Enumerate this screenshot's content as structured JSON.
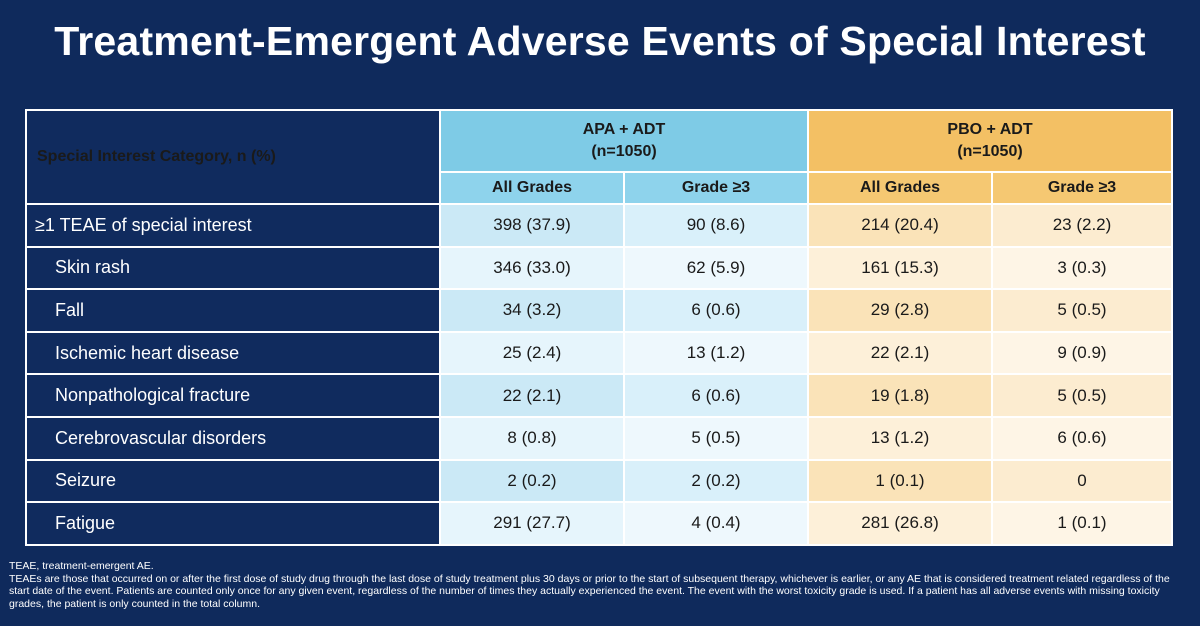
{
  "title": "Treatment-Emergent Adverse Events of Special Interest",
  "table": {
    "corner_label": "Special Interest Category, n (%)",
    "groups": [
      {
        "name": "APA + ADT",
        "n": "(n=1050)"
      },
      {
        "name": "PBO + ADT",
        "n": "(n=1050)"
      }
    ],
    "subheaders": [
      "All Grades",
      "Grade ≥3",
      "All Grades",
      "Grade ≥3"
    ],
    "rows": [
      {
        "label": "≥1 TEAE of special interest",
        "values": [
          "398 (37.9)",
          "90 (8.6)",
          "214 (20.4)",
          "23 (2.2)"
        ]
      },
      {
        "label": "Skin rash",
        "values": [
          "346 (33.0)",
          "62 (5.9)",
          "161 (15.3)",
          "3 (0.3)"
        ]
      },
      {
        "label": "Fall",
        "values": [
          "34 (3.2)",
          "6 (0.6)",
          "29 (2.8)",
          "5 (0.5)"
        ]
      },
      {
        "label": "Ischemic heart disease",
        "values": [
          "25 (2.4)",
          "13 (1.2)",
          "22 (2.1)",
          "9 (0.9)"
        ]
      },
      {
        "label": "Nonpathological fracture",
        "values": [
          "22 (2.1)",
          "6 (0.6)",
          "19 (1.8)",
          "5 (0.5)"
        ]
      },
      {
        "label": "Cerebrovascular disorders",
        "values": [
          "8 (0.8)",
          "5 (0.5)",
          "13 (1.2)",
          "6 (0.6)"
        ]
      },
      {
        "label": "Seizure",
        "values": [
          "2 (0.2)",
          "2 (0.2)",
          "1 (0.1)",
          "0"
        ]
      },
      {
        "label": "Fatigue",
        "values": [
          "291 (27.7)",
          "4 (0.4)",
          "281 (26.8)",
          "1 (0.1)"
        ]
      }
    ]
  },
  "footnotes": {
    "line1": "TEAE, treatment-emergent AE.",
    "line2": "TEAEs are those that occurred on or after the first dose of study drug through the last dose of study treatment plus 30 days or prior to the start of subsequent therapy, whichever is earlier, or any AE that is considered treatment related regardless of the start date of the event. Patients are counted only once for any given event, regardless of the number of times they actually experienced the event. The event with the worst toxicity grade is used. If a patient has all adverse events with missing toxicity grades, the patient is only counted in the total column."
  },
  "colors": {
    "background": "#0f2a5c",
    "apa_header": "#7ecbe6",
    "pbo_header": "#f3c064"
  }
}
